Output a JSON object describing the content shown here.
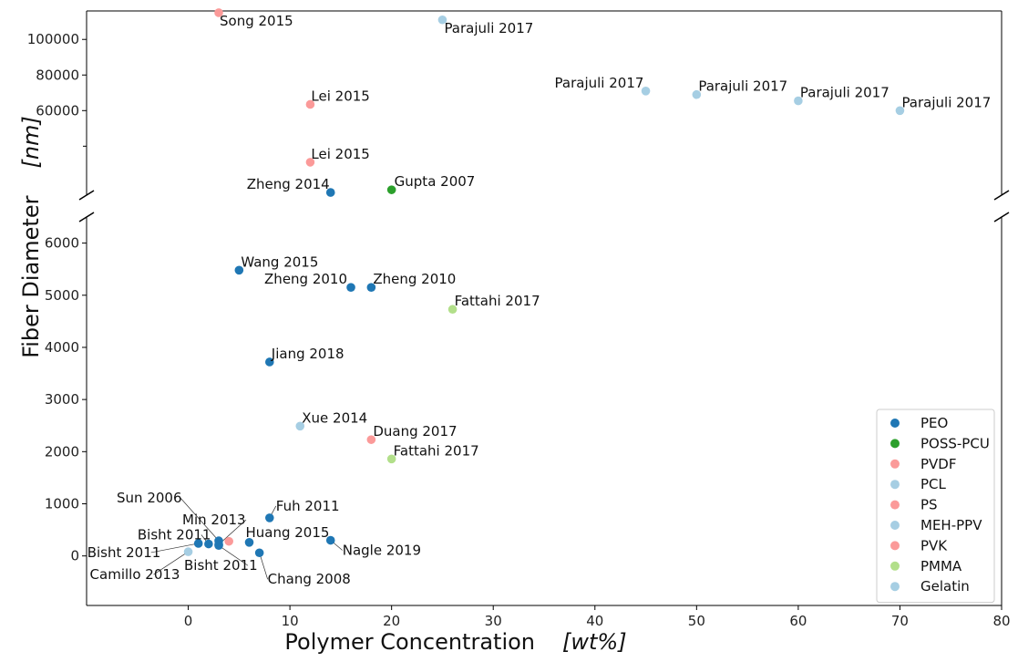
{
  "chart_data": {
    "type": "scatter",
    "xlabel": "Polymer Concentration",
    "xlabel_unit": "wt%",
    "ylabel": "Fiber Diameter",
    "ylabel_unit": "nm",
    "x_ticks": [
      "0",
      "10",
      "20",
      "30",
      "40",
      "50",
      "60",
      "70",
      "80"
    ],
    "xlim": [
      -10,
      80
    ],
    "broken_y_axis": true,
    "upper_panel": {
      "ylim": [
        12500,
        116000
      ],
      "y_ticks": [
        "60000",
        "80000",
        "100000"
      ]
    },
    "lower_panel": {
      "ylim": [
        -950,
        6500
      ],
      "y_ticks": [
        "0",
        "1000",
        "2000",
        "3000",
        "4000",
        "5000",
        "6000"
      ]
    },
    "legend_position": "lower right",
    "series": [
      {
        "name": "PEO",
        "color": "#1f77b4",
        "points": [
          {
            "x": 14,
            "y": 14000,
            "label": "Zheng 2014",
            "panel": "upper"
          },
          {
            "x": 5,
            "y": 5480,
            "label": "Wang 2015",
            "panel": "lower"
          },
          {
            "x": 16,
            "y": 5150,
            "label": "Zheng 2010",
            "panel": "lower"
          },
          {
            "x": 18,
            "y": 5150,
            "label": "Zheng 2010",
            "panel": "lower"
          },
          {
            "x": 8,
            "y": 3720,
            "label": "Jiang 2018",
            "panel": "lower"
          },
          {
            "x": 8,
            "y": 730,
            "label": "Fuh 2011",
            "panel": "lower"
          },
          {
            "x": 14,
            "y": 300,
            "label": "Nagle 2019",
            "panel": "lower"
          },
          {
            "x": 6,
            "y": 260,
            "label": "Huang 2015",
            "panel": "lower"
          },
          {
            "x": 7,
            "y": 60,
            "label": "Chang 2008",
            "panel": "lower"
          },
          {
            "x": 3,
            "y": 290,
            "label": "Sun 2006",
            "panel": "lower"
          },
          {
            "x": 3,
            "y": 220,
            "label": "Min 2013",
            "panel": "lower"
          },
          {
            "x": 2,
            "y": 230,
            "label": "Bisht 2011",
            "panel": "lower"
          },
          {
            "x": 1,
            "y": 240,
            "label": "Bisht 2011",
            "panel": "lower"
          },
          {
            "x": 3,
            "y": 200,
            "label": "Bisht 2011",
            "panel": "lower"
          }
        ]
      },
      {
        "name": "POSS-PCU",
        "color": "#2ca02c",
        "points": [
          {
            "x": 20,
            "y": 15500,
            "label": "Gupta 2007",
            "panel": "upper"
          }
        ]
      },
      {
        "name": "PVDF",
        "color": "#fb9a99",
        "points": [
          {
            "x": 12,
            "y": 63500,
            "label": "Lei 2015",
            "panel": "upper"
          },
          {
            "x": 12,
            "y": 31000,
            "label": "Lei 2015",
            "panel": "upper"
          },
          {
            "x": 18,
            "y": 2230,
            "label": "Duang 2017",
            "panel": "lower"
          }
        ]
      },
      {
        "name": "PCL",
        "color": "#a6cee3",
        "points": [
          {
            "x": 25,
            "y": 111000,
            "label": "Parajuli 2017",
            "panel": "upper"
          },
          {
            "x": 45,
            "y": 71000,
            "label": "Parajuli 2017",
            "panel": "upper"
          },
          {
            "x": 50,
            "y": 69000,
            "label": "Parajuli 2017",
            "panel": "upper"
          },
          {
            "x": 60,
            "y": 65500,
            "label": "Parajuli 2017",
            "panel": "upper"
          },
          {
            "x": 70,
            "y": 60000,
            "label": "Parajuli 2017",
            "panel": "upper"
          }
        ]
      },
      {
        "name": "PS",
        "color": "#fb9a99",
        "points": [
          {
            "x": 3,
            "y": 115000,
            "label": "Song 2015",
            "panel": "upper"
          }
        ]
      },
      {
        "name": "MEH-PPV",
        "color": "#a6cee3",
        "points": [
          {
            "x": 11,
            "y": 2490,
            "label": "Xue 2014",
            "panel": "lower"
          }
        ]
      },
      {
        "name": "PVK",
        "color": "#fb9a99",
        "points": [
          {
            "x": 4,
            "y": 280,
            "label": "",
            "panel": "lower"
          }
        ]
      },
      {
        "name": "PMMA",
        "color": "#b2df8a",
        "points": [
          {
            "x": 26,
            "y": 4730,
            "label": "Fattahi 2017",
            "panel": "lower"
          },
          {
            "x": 20,
            "y": 1860,
            "label": "Fattahi 2017",
            "panel": "lower"
          }
        ]
      },
      {
        "name": "Gelatin",
        "color": "#a6cee3",
        "points": [
          {
            "x": 0,
            "y": 80,
            "label": "Camillo 2013",
            "panel": "lower"
          }
        ]
      }
    ]
  }
}
